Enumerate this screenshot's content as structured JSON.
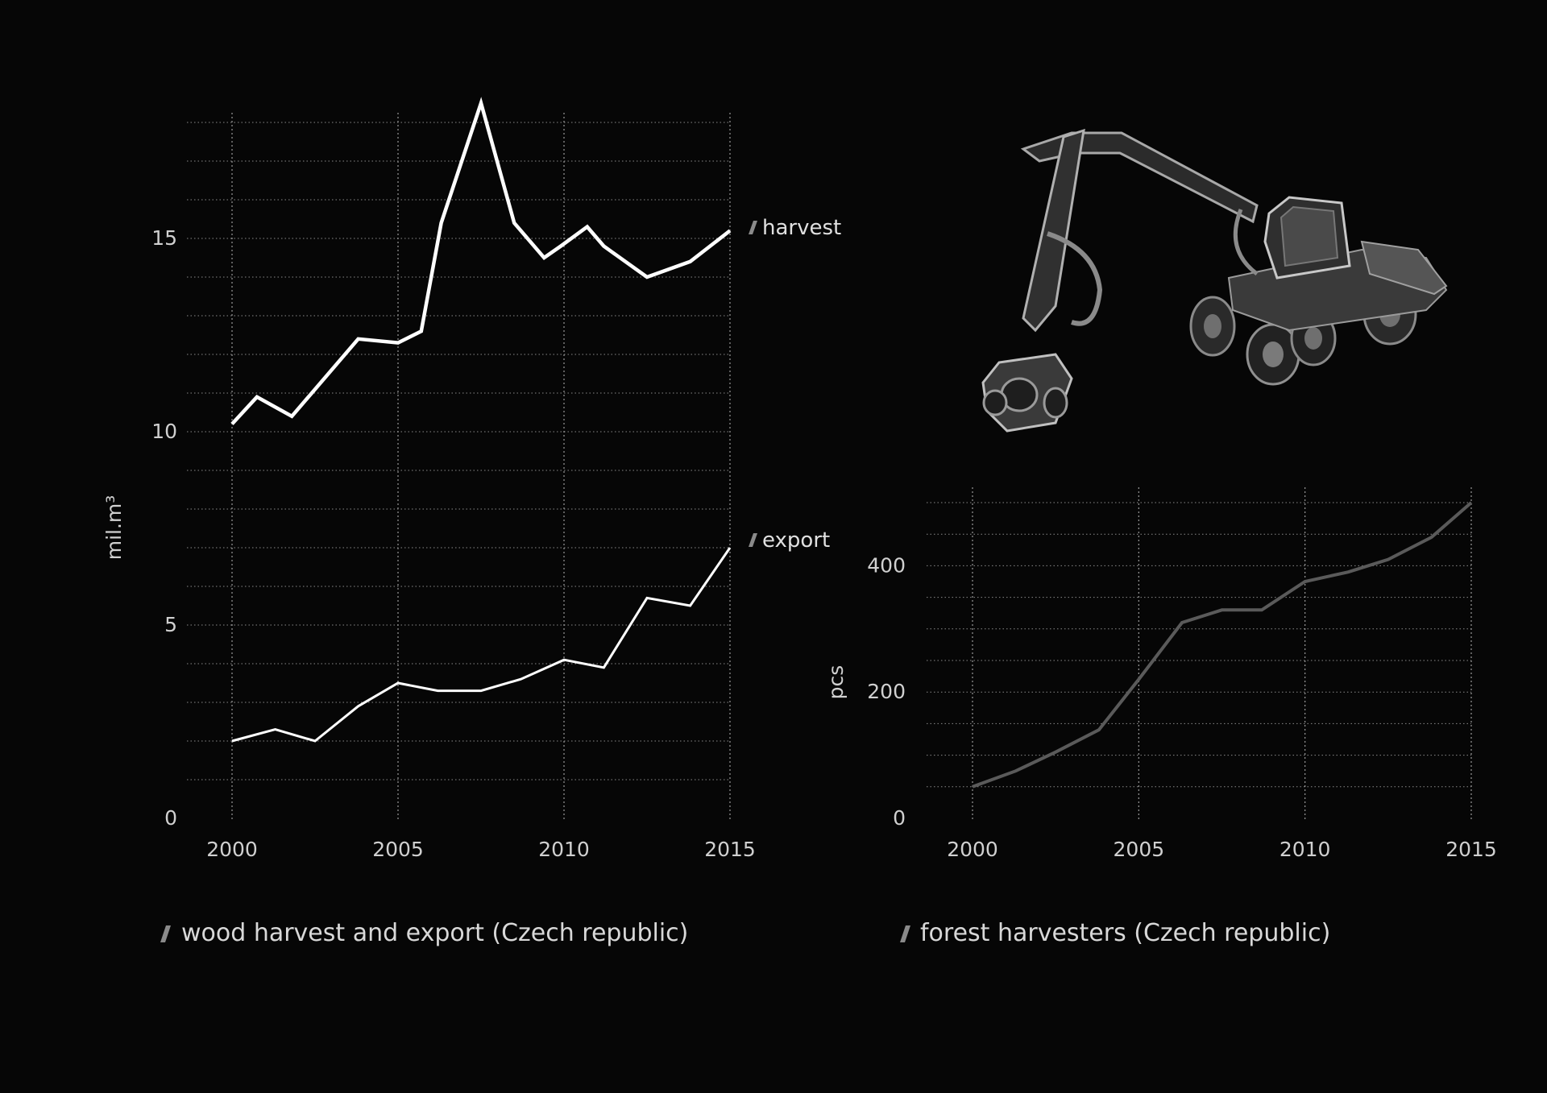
{
  "colors": {
    "background": "#060606",
    "text": "#d8d8d8",
    "harvest_line": "#ffffff",
    "export_line": "#ffffff",
    "harvesters_line": "#5a5a5a",
    "slash_marker": "#8a8a8a"
  },
  "illustration": {
    "icon": "forest-harvester-machine-photo"
  },
  "chart_data": [
    {
      "type": "line",
      "title": "wood harvest and export (Czech republic)",
      "xlabel": "",
      "ylabel": "mil.m³",
      "xlim": [
        2000,
        2015
      ],
      "ylim": [
        0,
        18
      ],
      "x_ticks": [
        "2000",
        "2005",
        "2010",
        "2015"
      ],
      "y_ticks": [
        "0",
        "5",
        "10",
        "15"
      ],
      "grid": true,
      "legend": "inline labels at line ends (right)",
      "series": [
        {
          "name": "harvest",
          "x": [
            2000,
            2000.75,
            2001.8,
            2003.8,
            2005,
            2005.7,
            2006.3,
            2007.5,
            2008.5,
            2009.4,
            2009.9,
            2010.7,
            2011.2,
            2012.5,
            2013.8,
            2015
          ],
          "y": [
            10.2,
            10.9,
            10.4,
            12.4,
            12.3,
            12.6,
            15.4,
            18.5,
            15.4,
            14.5,
            14.8,
            15.3,
            14.8,
            14.0,
            14.4,
            15.2
          ]
        },
        {
          "name": "export",
          "x": [
            2000,
            2001.3,
            2002.5,
            2003.8,
            2005,
            2006.2,
            2007.5,
            2008.7,
            2010,
            2011.2,
            2012.5,
            2013.8,
            2015
          ],
          "y": [
            2.0,
            2.3,
            2.0,
            2.9,
            3.5,
            3.3,
            3.3,
            3.6,
            4.1,
            3.9,
            5.7,
            5.5,
            7.0
          ]
        }
      ]
    },
    {
      "type": "line",
      "title": "forest harvesters (Czech republic)",
      "xlabel": "",
      "ylabel": "pcs",
      "xlim": [
        2000,
        2015
      ],
      "ylim": [
        0,
        500
      ],
      "x_ticks": [
        "2000",
        "2005",
        "2010",
        "2015"
      ],
      "y_ticks": [
        "0",
        "200",
        "400"
      ],
      "grid": true,
      "legend": "none",
      "series": [
        {
          "x": [
            2000,
            2001.3,
            2002.5,
            2003.8,
            2005,
            2006.3,
            2007.5,
            2008.7,
            2010,
            2011.3,
            2012.5,
            2013.8,
            2015
          ],
          "y": [
            50,
            75,
            105,
            140,
            220,
            310,
            330,
            330,
            375,
            390,
            410,
            445,
            500
          ]
        }
      ]
    }
  ]
}
